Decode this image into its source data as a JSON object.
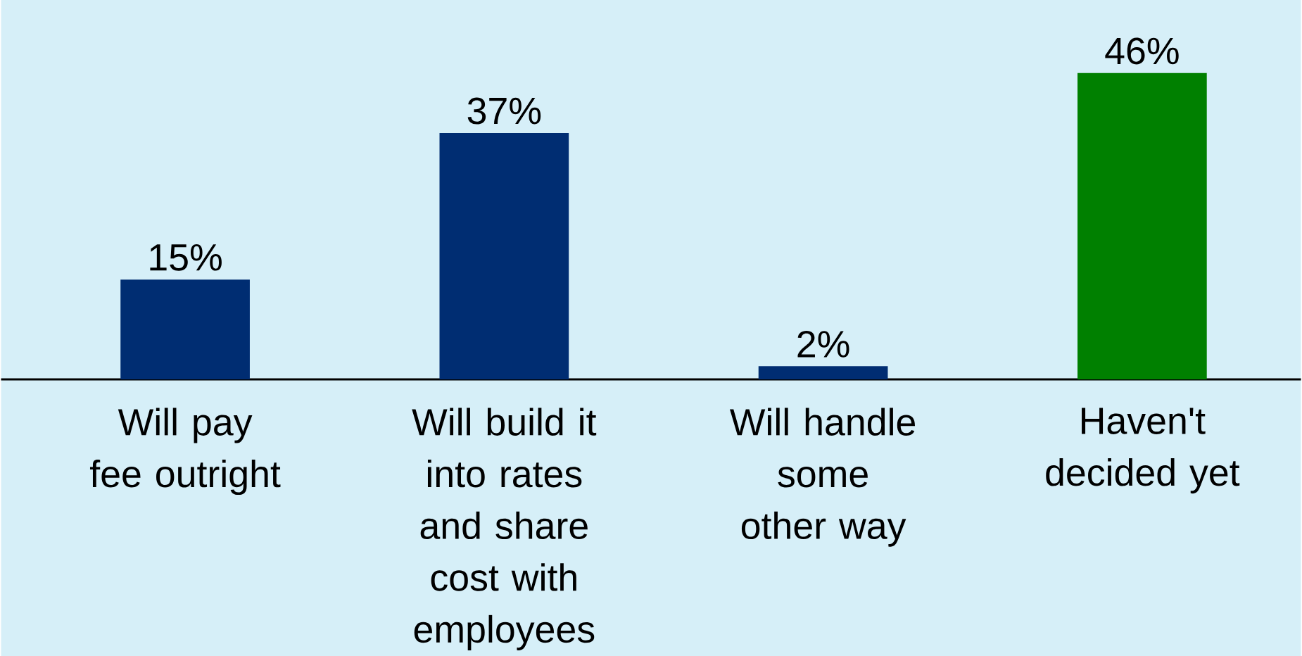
{
  "chart_data": {
    "type": "bar",
    "categories": [
      "Will pay fee outright",
      "Will build it into rates and share cost with employees",
      "Will handle some other way",
      "Haven't decided yet"
    ],
    "values": [
      15,
      37,
      2,
      46
    ],
    "colors": [
      "#002d72",
      "#002d72",
      "#002d72",
      "#008000"
    ],
    "value_labels": [
      "15%",
      "37%",
      "2%",
      "46%"
    ]
  }
}
